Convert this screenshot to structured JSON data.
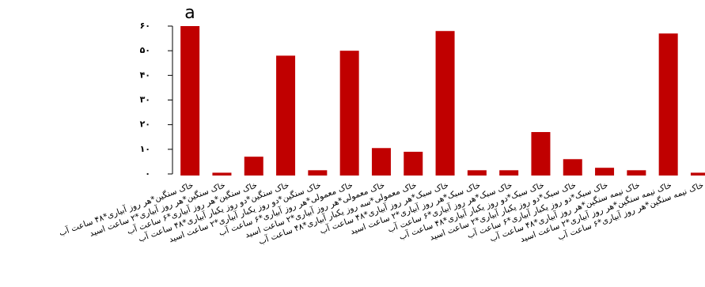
{
  "chart_data": {
    "type": "bar",
    "annotation": "a",
    "categories": [
      "خاک سنگین*هر روز آبیاری*۴۸ ساعت آب",
      "خاک سنگین*هر روز آبیاری*۲ ساعت اسید",
      "خاک سنگین*هر روز آبیاری*۶ ساعت آب",
      "خاک سنگین*دو روز یکبار آبیاری*۴۸ ساعت آب",
      "خاک سنگین*دو روز یکبار آبیاری*۲ ساعت اسید",
      "خاک معمولی*هر روز آبیاری*۶ ساعت آب",
      "خاک معمولی*هر روز آبیاری*۲ ساعت اسید",
      "خاک معمولی*سه روز یکبار آبیاری*۴۸ ساعت آب",
      "خاک سبک*هر روز آبیاری*۴۸ ساعت آب",
      "خاک سبک*هر روز آبیاری*۲ ساعت اسید",
      "خاک سبک*هر روز آبیاری*۶ ساعت آب",
      "خاک سبک*دو روز یکبار آبیاری*۴۸ ساعت آب",
      "خاک سبک*دو روز یکبار آبیاری*۲ ساعت اسید",
      "خاک سبک*دو روز یکبار آبیاری*۶ ساعت آب",
      "خاک نیمه سنگین*هر روز آبیاری*۴۸ ساعت آب",
      "خاک نیمه سنگین*هر روز آبیاری*۲ ساعت اسید",
      "خاک نیمه سنگین*هر روز آبیاری*۶ ساعت آب"
    ],
    "values": [
      60,
      0.5,
      7,
      48,
      1.5,
      50,
      10.5,
      9,
      58,
      1.5,
      1.5,
      17,
      6,
      2.5,
      1.5,
      57,
      0.5
    ],
    "color": "#c00000",
    "ylim": [
      0,
      60
    ],
    "yticks": [
      {
        "value": 0,
        "label": "۰"
      },
      {
        "value": 10,
        "label": "۱۰"
      },
      {
        "value": 20,
        "label": "۲۰"
      },
      {
        "value": 30,
        "label": "۳۰"
      },
      {
        "value": 40,
        "label": "۴۰"
      },
      {
        "value": 50,
        "label": "۵۰"
      },
      {
        "value": 60,
        "label": "۶۰"
      }
    ]
  }
}
